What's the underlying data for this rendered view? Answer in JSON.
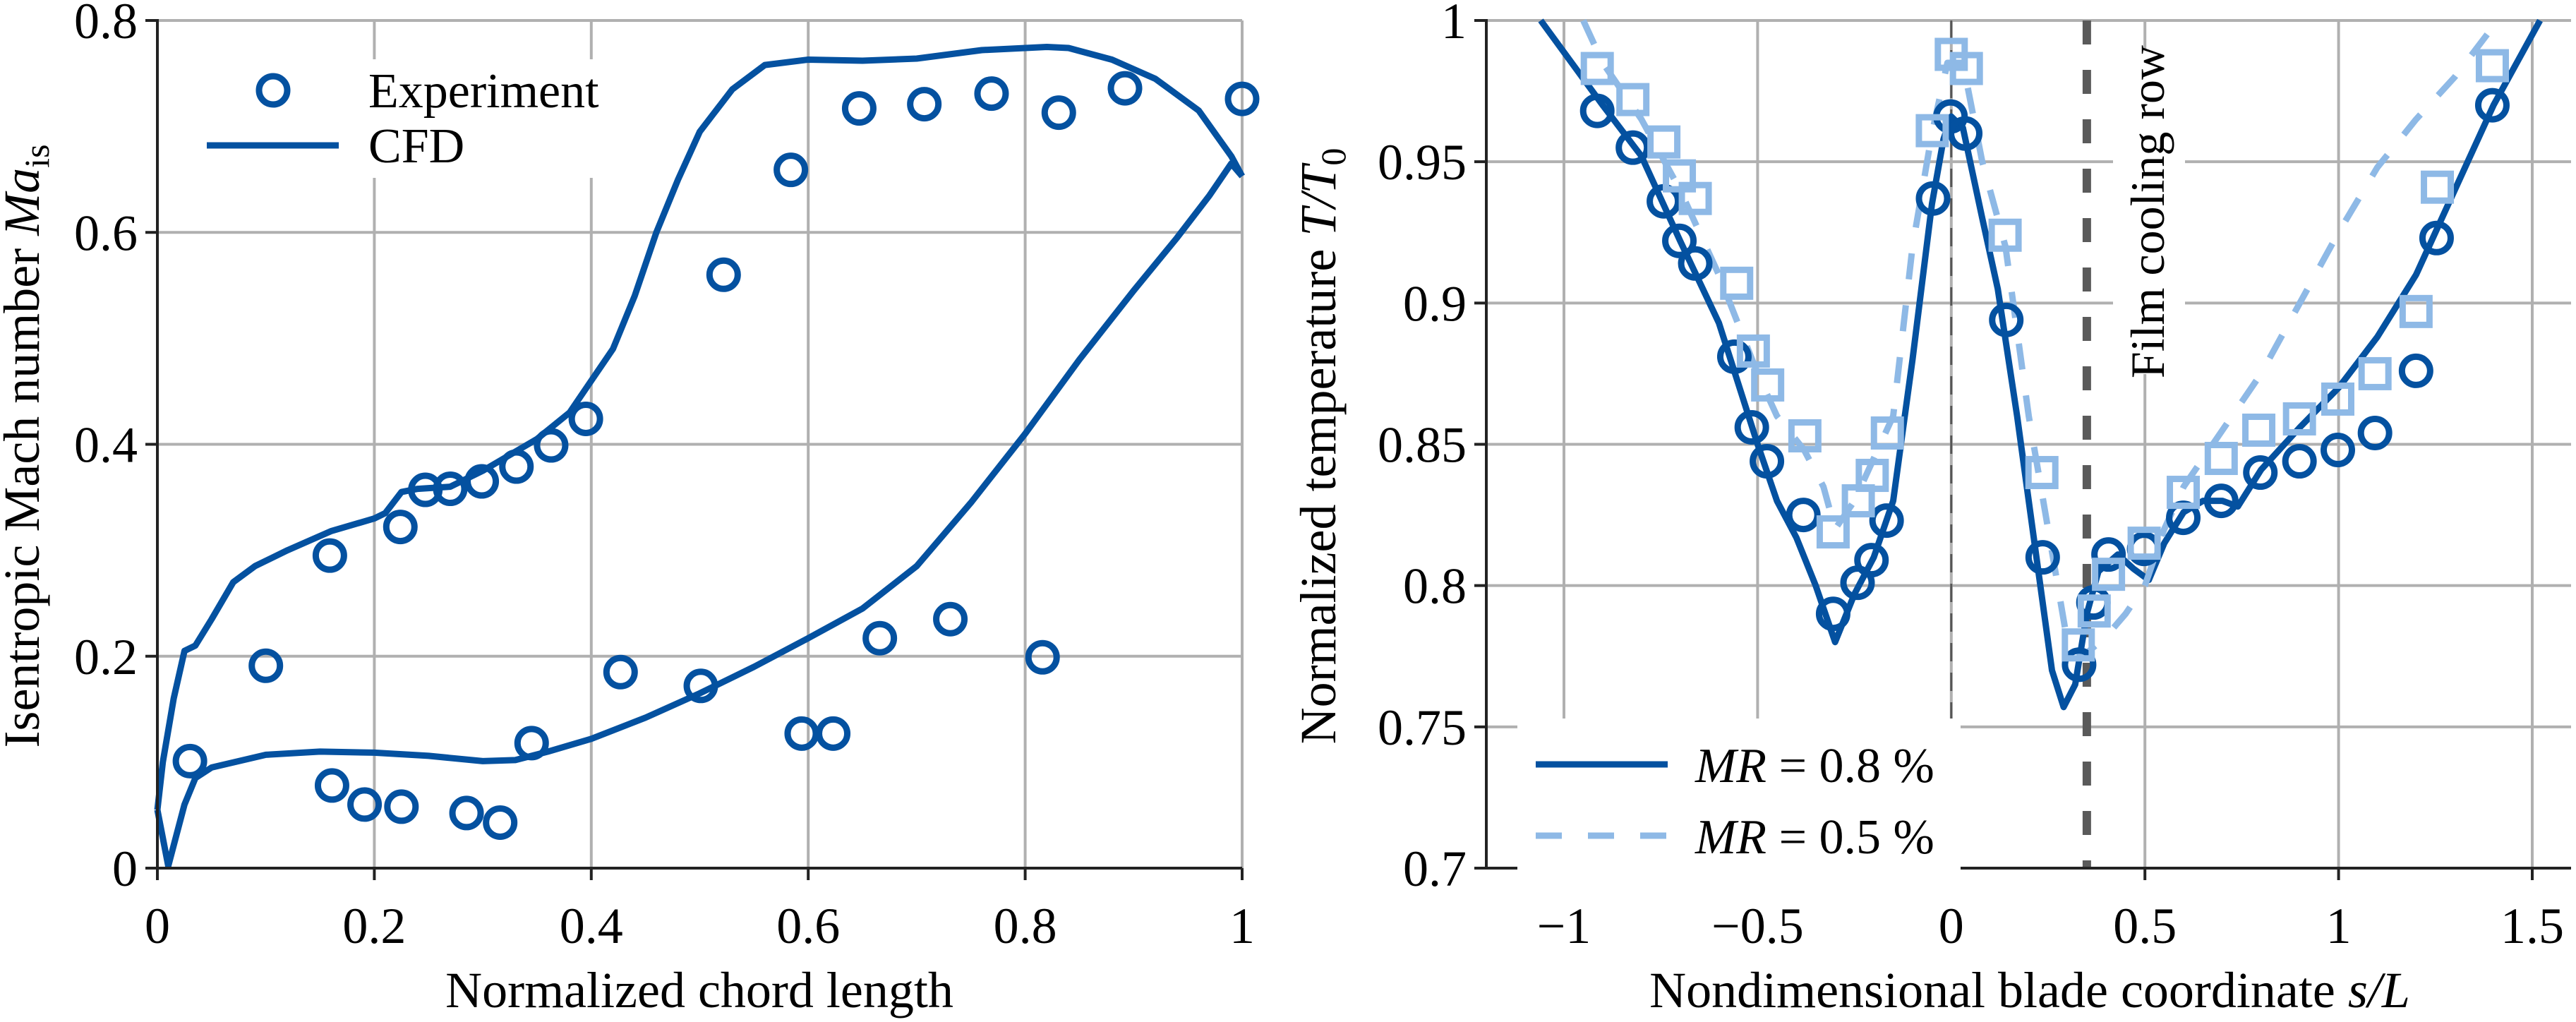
{
  "colors": {
    "primary": "#0451A0",
    "secondary": "#8EB9E6",
    "grid": "#b0b0b0",
    "annotation_line": "#5a5a5a",
    "axis": "#222222"
  },
  "chart_data": [
    {
      "type": "line",
      "title": "",
      "xlabel": "Normalized chord length",
      "ylabel": "Isentropic Mach number Ma_is",
      "ylabel_parts": {
        "prefix": "Isentropic Mach number ",
        "symbol": "Ma",
        "subscript": "is"
      },
      "xlim": [
        0,
        1
      ],
      "ylim": [
        0,
        0.8
      ],
      "xticks": [
        0,
        0.2,
        0.4,
        0.6,
        0.8,
        1
      ],
      "xtick_labels": [
        "0",
        "0.2",
        "0.4",
        "0.6",
        "0.8",
        "1"
      ],
      "yticks": [
        0,
        0.2,
        0.4,
        0.6,
        0.8
      ],
      "ytick_labels": [
        "0",
        "0.2",
        "0.4",
        "0.6",
        "0.8"
      ],
      "grid": true,
      "legend_position": "top-left",
      "legend": [
        {
          "label": "Experiment",
          "marker": "circle",
          "line": "none"
        },
        {
          "label": "CFD",
          "marker": "none",
          "line": "solid"
        }
      ],
      "series": [
        {
          "name": "Experiment",
          "style": "markers-circle",
          "x": [
            0.03,
            0.1,
            0.159,
            0.161,
            0.191,
            0.224,
            0.225,
            0.247,
            0.27,
            0.285,
            0.299,
            0.316,
            0.331,
            0.345,
            0.363,
            0.395,
            0.427,
            0.501,
            0.522,
            0.584,
            0.594,
            0.623,
            0.647,
            0.666,
            0.707,
            0.731,
            0.769,
            0.816,
            0.831,
            0.892,
            1.0
          ],
          "y": [
            0.101,
            0.191,
            0.295,
            0.078,
            0.06,
            0.322,
            0.058,
            0.357,
            0.358,
            0.052,
            0.365,
            0.043,
            0.379,
            0.118,
            0.399,
            0.424,
            0.185,
            0.172,
            0.56,
            0.659,
            0.127,
            0.127,
            0.717,
            0.217,
            0.721,
            0.235,
            0.731,
            0.199,
            0.713,
            0.736,
            0.726
          ]
        },
        {
          "name": "CFD (suction side)",
          "style": "line-solid",
          "x": [
            0,
            0.005,
            0.015,
            0.025,
            0.035,
            0.05,
            0.07,
            0.09,
            0.12,
            0.16,
            0.2,
            0.21,
            0.225,
            0.24,
            0.27,
            0.3,
            0.35,
            0.38,
            0.4,
            0.42,
            0.44,
            0.46,
            0.48,
            0.5,
            0.53,
            0.56,
            0.6,
            0.65,
            0.7,
            0.76,
            0.82,
            0.84,
            0.88,
            0.92,
            0.96,
            0.99,
            1.0
          ],
          "y": [
            0.055,
            0.1,
            0.16,
            0.205,
            0.21,
            0.235,
            0.27,
            0.285,
            0.3,
            0.318,
            0.33,
            0.335,
            0.355,
            0.358,
            0.36,
            0.375,
            0.405,
            0.43,
            0.46,
            0.49,
            0.54,
            0.6,
            0.65,
            0.695,
            0.735,
            0.758,
            0.763,
            0.762,
            0.764,
            0.772,
            0.775,
            0.774,
            0.763,
            0.745,
            0.715,
            0.672,
            0.653
          ]
        },
        {
          "name": "CFD (pressure side)",
          "style": "line-solid",
          "x": [
            0,
            0.01,
            0.025,
            0.035,
            0.05,
            0.1,
            0.15,
            0.2,
            0.25,
            0.3,
            0.33,
            0.36,
            0.4,
            0.45,
            0.5,
            0.55,
            0.6,
            0.65,
            0.7,
            0.75,
            0.8,
            0.85,
            0.9,
            0.94,
            0.97,
            0.99,
            1.0
          ],
          "y": [
            0.055,
            0.002,
            0.06,
            0.085,
            0.095,
            0.107,
            0.11,
            0.109,
            0.106,
            0.101,
            0.102,
            0.11,
            0.122,
            0.142,
            0.165,
            0.19,
            0.217,
            0.245,
            0.285,
            0.345,
            0.41,
            0.48,
            0.545,
            0.595,
            0.635,
            0.665,
            0.653
          ]
        }
      ]
    },
    {
      "type": "line",
      "title": "",
      "xlabel": "Nondimensional blade coordinate s/L",
      "xlabel_parts": {
        "prefix": "Nondimensional blade coordinate ",
        "symbol": "s/L"
      },
      "ylabel": "Normalized temperature T/T0",
      "ylabel_parts": {
        "prefix": "Normalized temperature ",
        "symbol": "T/T",
        "subscript": "0"
      },
      "xlim": [
        -1.2,
        1.6
      ],
      "ylim": [
        0.7,
        1.0
      ],
      "xticks": [
        -1,
        -0.5,
        0,
        0.5,
        1,
        1.5
      ],
      "xtick_labels": [
        "−1",
        "−0.5",
        "0",
        "0.5",
        "1",
        "1.5"
      ],
      "yticks": [
        0.7,
        0.75,
        0.8,
        0.85,
        0.9,
        0.95,
        1.0
      ],
      "ytick_labels": [
        "0.7",
        "0.75",
        "0.8",
        "0.85",
        "0.9",
        "0.95",
        "1"
      ],
      "grid": true,
      "legend_position": "bottom-left",
      "legend": [
        {
          "label_symbol": "MR",
          "label_rest": " = 0.8 %",
          "line": "solid"
        },
        {
          "label_symbol": "MR",
          "label_rest": " = 0.5 %",
          "line": "dashed"
        }
      ],
      "annotations": [
        {
          "type": "vline",
          "x": 0.35,
          "style": "dashed",
          "label": "Film cooling row"
        },
        {
          "type": "vline",
          "x": 0,
          "style": "thin-dashed",
          "label": ""
        }
      ],
      "series": [
        {
          "name": "MR = 0.8 % (CFD)",
          "style": "line-solid",
          "x": [
            -1.06,
            -0.9,
            -0.8,
            -0.7,
            -0.6,
            -0.5,
            -0.45,
            -0.4,
            -0.35,
            -0.3,
            -0.25,
            -0.2,
            -0.15,
            -0.1,
            -0.05,
            -0.02,
            0.0,
            0.03,
            0.08,
            0.12,
            0.17,
            0.22,
            0.26,
            0.29,
            0.32,
            0.35,
            0.38,
            0.43,
            0.47,
            0.51,
            0.55,
            0.6,
            0.65,
            0.7,
            0.74,
            0.8,
            0.9,
            1.0,
            1.1,
            1.2,
            1.3,
            1.4,
            1.52
          ],
          "y": [
            1.0,
            0.97,
            0.952,
            0.922,
            0.893,
            0.85,
            0.83,
            0.817,
            0.8,
            0.78,
            0.797,
            0.81,
            0.83,
            0.88,
            0.935,
            0.958,
            0.966,
            0.962,
            0.93,
            0.905,
            0.86,
            0.81,
            0.77,
            0.757,
            0.765,
            0.79,
            0.805,
            0.811,
            0.806,
            0.802,
            0.815,
            0.826,
            0.83,
            0.83,
            0.828,
            0.841,
            0.856,
            0.87,
            0.888,
            0.91,
            0.94,
            0.97,
            1.0
          ]
        },
        {
          "name": "MR = 0.5 % (CFD)",
          "style": "line-dashed",
          "x": [
            -0.95,
            -0.9,
            -0.8,
            -0.7,
            -0.6,
            -0.5,
            -0.45,
            -0.38,
            -0.33,
            -0.3,
            -0.25,
            -0.2,
            -0.15,
            -0.1,
            -0.05,
            -0.01,
            0.03,
            0.08,
            0.14,
            0.2,
            0.25,
            0.3,
            0.34,
            0.4,
            0.45,
            0.5,
            0.55,
            0.6,
            0.7,
            0.8,
            0.9,
            1.0,
            1.1,
            1.2,
            1.3,
            1.4
          ],
          "y": [
            1.0,
            0.985,
            0.965,
            0.94,
            0.91,
            0.875,
            0.86,
            0.848,
            0.835,
            0.82,
            0.83,
            0.845,
            0.86,
            0.92,
            0.96,
            0.985,
            0.985,
            0.95,
            0.92,
            0.86,
            0.82,
            0.78,
            0.775,
            0.782,
            0.79,
            0.8,
            0.82,
            0.835,
            0.855,
            0.875,
            0.9,
            0.925,
            0.948,
            0.965,
            0.98,
            0.998
          ]
        },
        {
          "name": "MR = 0.8 % (Experiment)",
          "style": "markers-circle",
          "x": [
            -0.914,
            -0.822,
            -0.742,
            -0.702,
            -0.661,
            -0.56,
            -0.515,
            -0.476,
            -0.382,
            -0.305,
            -0.242,
            -0.206,
            -0.167,
            -0.047,
            -0.002,
            0.036,
            0.142,
            0.236,
            0.33,
            0.367,
            0.406,
            0.498,
            0.599,
            0.697,
            0.798,
            0.899,
            0.998,
            1.094,
            1.2,
            1.253,
            1.397
          ],
          "y": [
            0.968,
            0.955,
            0.936,
            0.922,
            0.914,
            0.881,
            0.856,
            0.844,
            0.825,
            0.79,
            0.801,
            0.809,
            0.823,
            0.937,
            0.966,
            0.96,
            0.894,
            0.81,
            0.772,
            0.794,
            0.811,
            0.813,
            0.824,
            0.83,
            0.84,
            0.844,
            0.848,
            0.854,
            0.876,
            0.923,
            0.97
          ]
        },
        {
          "name": "MR = 0.5 % (Experiment)",
          "style": "markers-square",
          "x": [
            -0.914,
            -0.822,
            -0.742,
            -0.702,
            -0.661,
            -0.554,
            -0.511,
            -0.474,
            -0.378,
            -0.305,
            -0.24,
            -0.204,
            -0.165,
            -0.049,
            0.0,
            0.039,
            0.139,
            0.234,
            0.328,
            0.369,
            0.406,
            0.498,
            0.599,
            0.697,
            0.794,
            0.899,
            0.998,
            1.094,
            1.2,
            1.255,
            1.397
          ],
          "y": [
            0.983,
            0.972,
            0.957,
            0.945,
            0.937,
            0.907,
            0.883,
            0.871,
            0.853,
            0.819,
            0.83,
            0.839,
            0.854,
            0.961,
            0.988,
            0.983,
            0.924,
            0.84,
            0.779,
            0.791,
            0.804,
            0.815,
            0.833,
            0.845,
            0.855,
            0.859,
            0.866,
            0.875,
            0.897,
            0.941,
            0.984
          ]
        }
      ]
    }
  ]
}
